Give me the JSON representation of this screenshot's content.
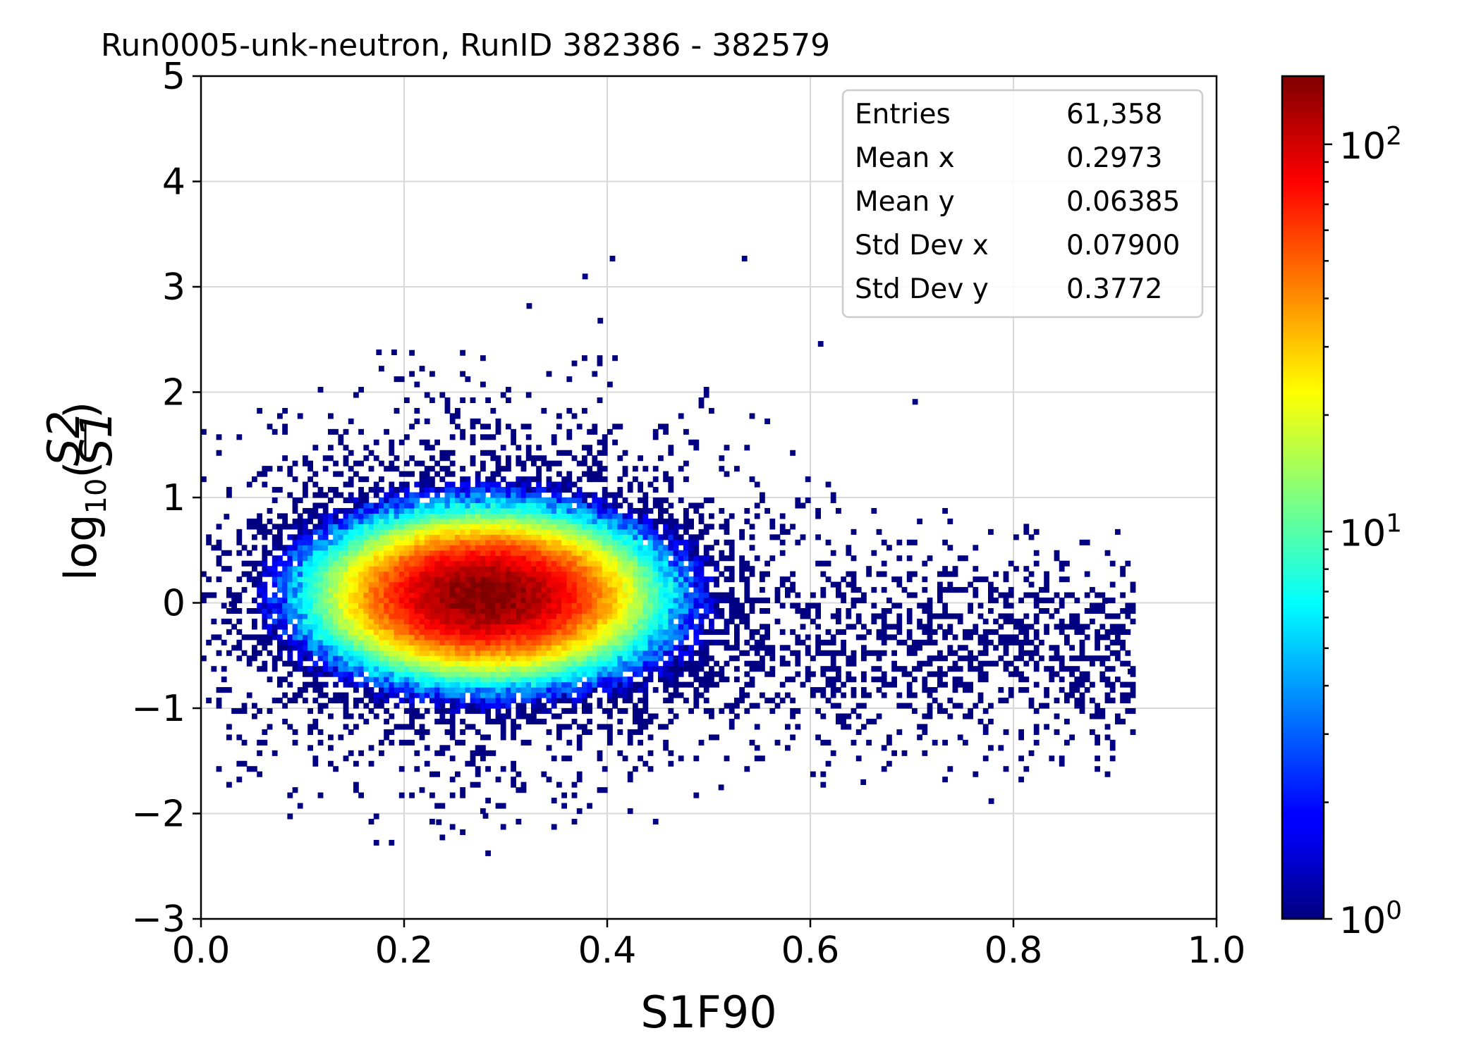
{
  "chart_data": {
    "type": "heatmap",
    "title": "Run0005-unk-neutron, RunID 382386 - 382579",
    "xlabel": "S1F90",
    "ylabel_parts": {
      "prefix": "log",
      "sub": "10",
      "num": "S2",
      "den": "S1"
    },
    "xlim": [
      0.0,
      1.0
    ],
    "ylim": [
      -3,
      5
    ],
    "x_ticks": [
      "0.0",
      "0.2",
      "0.4",
      "0.6",
      "0.8",
      "1.0"
    ],
    "y_ticks": [
      "5",
      "4",
      "3",
      "2",
      "1",
      "0",
      "−1",
      "−2",
      "−3"
    ],
    "grid": true,
    "colorbar": {
      "scale": "log",
      "colormap": "jet",
      "min": 1,
      "max": 150,
      "tick_labels": [
        {
          "base": "10",
          "exp": "0"
        },
        {
          "base": "10",
          "exp": "1"
        },
        {
          "base": "10",
          "exp": "2"
        }
      ]
    },
    "stats_box": {
      "placement": "top-right",
      "rows": [
        {
          "label": "Entries",
          "value": "61,358"
        },
        {
          "label": "Mean x",
          "value": "0.2973"
        },
        {
          "label": "Mean y",
          "value": "0.06385"
        },
        {
          "label": "Std Dev x",
          "value": "0.07900"
        },
        {
          "label": "Std Dev y",
          "value": "0.3772"
        }
      ]
    },
    "distribution": {
      "core": {
        "x_center": 0.28,
        "y_center": 0.07,
        "x_sigma": 0.07,
        "y_sigma": 0.33,
        "peak_count": 150
      },
      "tail": {
        "x_range": [
          0.45,
          0.92
        ],
        "y_center": -0.4,
        "y_sigma": 0.5,
        "density": "sparse"
      },
      "isolated_points": [
        {
          "x": 0.405,
          "y": 3.27
        },
        {
          "x": 0.535,
          "y": 3.27
        },
        {
          "x": 0.378,
          "y": 3.1
        },
        {
          "x": 0.323,
          "y": 2.82
        },
        {
          "x": 0.393,
          "y": 2.68
        },
        {
          "x": 0.61,
          "y": 2.46
        },
        {
          "x": 0.175,
          "y": 2.38
        },
        {
          "x": 0.19,
          "y": 2.38
        },
        {
          "x": 0.703,
          "y": 1.91
        },
        {
          "x": 0.234,
          "y": -2.08
        },
        {
          "x": 0.28,
          "y": -2.02
        },
        {
          "x": 0.778,
          "y": -1.88
        },
        {
          "x": 0.652,
          "y": -1.7
        },
        {
          "x": 0.512,
          "y": -1.75
        },
        {
          "x": 0.915,
          "y": -0.65
        },
        {
          "x": 0.03,
          "y": -0.01
        },
        {
          "x": 0.025,
          "y": 0.82
        },
        {
          "x": 0.89,
          "y": 0.02
        }
      ]
    }
  }
}
